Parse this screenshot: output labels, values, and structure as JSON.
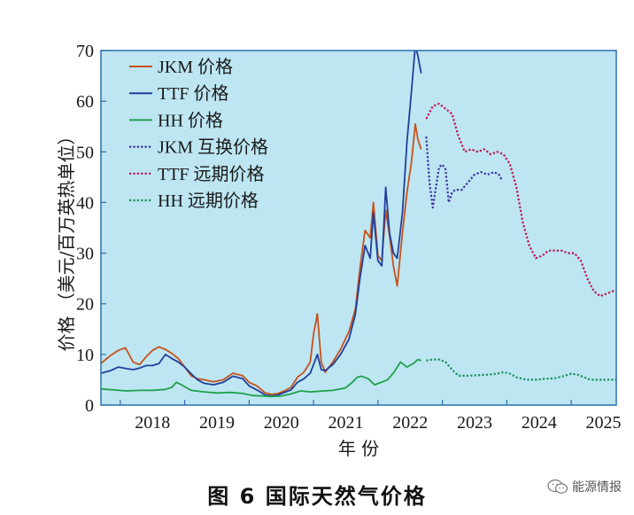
{
  "caption": "图 6    国际天然气价格",
  "watermark": {
    "text": "能源情报",
    "icon": "wechat-icon"
  },
  "chart_data": {
    "type": "line",
    "title": "",
    "xlabel": "年 份",
    "ylabel": "价格 （美元/百万英热单位）",
    "xlim": [
      2017.7,
      2025.7
    ],
    "ylim": [
      0,
      70
    ],
    "yticks": [
      0,
      10,
      20,
      30,
      40,
      50,
      60,
      70
    ],
    "xticks": [
      "2018",
      "2019",
      "2020",
      "2021",
      "2022",
      "2023",
      "2024",
      "2025"
    ],
    "background_color": "#bde6f2",
    "grid": false,
    "legend_position": "top-left",
    "series": [
      {
        "name": "JKM 价格",
        "color": "#c8511a",
        "style": "solid",
        "x": [
          2017.7,
          2017.85,
          2017.97,
          2018.08,
          2018.2,
          2018.3,
          2018.4,
          2018.5,
          2018.6,
          2018.7,
          2018.8,
          2018.9,
          2019.0,
          2019.1,
          2019.2,
          2019.3,
          2019.45,
          2019.6,
          2019.75,
          2019.9,
          2020.0,
          2020.12,
          2020.25,
          2020.35,
          2020.45,
          2020.55,
          2020.65,
          2020.75,
          2020.85,
          2020.95,
          2021.0,
          2021.06,
          2021.12,
          2021.18,
          2021.3,
          2021.42,
          2021.55,
          2021.65,
          2021.72,
          2021.8,
          2021.88,
          2021.93,
          2022.0,
          2022.06,
          2022.12,
          2022.18,
          2022.24,
          2022.3,
          2022.38,
          2022.45,
          2022.52,
          2022.58,
          2022.62,
          2022.67
        ],
        "y": [
          8.2,
          9.8,
          10.8,
          11.3,
          8.5,
          8.0,
          9.5,
          10.8,
          11.5,
          11.0,
          10.2,
          9.2,
          7.5,
          5.8,
          5.2,
          5.0,
          4.6,
          5.0,
          6.3,
          5.8,
          4.5,
          3.8,
          2.4,
          2.1,
          2.3,
          2.8,
          3.5,
          5.5,
          6.5,
          8.5,
          14.0,
          18.0,
          8.5,
          6.5,
          8.5,
          11.0,
          14.5,
          19.0,
          27.0,
          34.5,
          33.0,
          40.0,
          29.5,
          28.5,
          38.5,
          33.5,
          27.5,
          23.5,
          34.0,
          42.0,
          48.0,
          55.5,
          52.5,
          50.5
        ]
      },
      {
        "name": "TTF 价格",
        "color": "#1f3f9c",
        "style": "solid",
        "x": [
          2017.7,
          2017.85,
          2017.97,
          2018.1,
          2018.2,
          2018.3,
          2018.4,
          2018.5,
          2018.6,
          2018.7,
          2018.8,
          2018.9,
          2019.0,
          2019.1,
          2019.2,
          2019.3,
          2019.45,
          2019.6,
          2019.75,
          2019.9,
          2020.0,
          2020.12,
          2020.25,
          2020.35,
          2020.45,
          2020.55,
          2020.65,
          2020.75,
          2020.85,
          2020.95,
          2021.0,
          2021.06,
          2021.12,
          2021.18,
          2021.3,
          2021.42,
          2021.55,
          2021.65,
          2021.72,
          2021.8,
          2021.88,
          2021.93,
          2022.0,
          2022.06,
          2022.12,
          2022.18,
          2022.24,
          2022.3,
          2022.38,
          2022.45,
          2022.52,
          2022.58,
          2022.62,
          2022.67
        ],
        "y": [
          6.3,
          6.8,
          7.5,
          7.2,
          7.0,
          7.3,
          7.8,
          7.8,
          8.2,
          10.0,
          9.2,
          8.5,
          7.5,
          6.2,
          5.0,
          4.3,
          4.0,
          4.5,
          5.7,
          5.2,
          3.8,
          3.0,
          2.0,
          1.8,
          2.0,
          2.5,
          3.0,
          4.5,
          5.2,
          6.3,
          8.0,
          10.0,
          7.0,
          6.8,
          8.0,
          10.0,
          13.0,
          18.0,
          25.0,
          31.5,
          29.0,
          38.0,
          28.5,
          27.5,
          43.0,
          34.0,
          30.0,
          29.0,
          38.0,
          52.0,
          62.0,
          71.0,
          69.0,
          65.5
        ]
      },
      {
        "name": "HH 价格",
        "color": "#1fa04a",
        "style": "solid",
        "x": [
          2017.7,
          2017.9,
          2018.1,
          2018.3,
          2018.5,
          2018.7,
          2018.8,
          2018.87,
          2018.95,
          2019.1,
          2019.3,
          2019.5,
          2019.7,
          2019.9,
          2020.05,
          2020.2,
          2020.35,
          2020.5,
          2020.65,
          2020.8,
          2020.95,
          2021.05,
          2021.15,
          2021.3,
          2021.5,
          2021.6,
          2021.68,
          2021.75,
          2021.85,
          2021.95,
          2022.05,
          2022.15,
          2022.25,
          2022.35,
          2022.45,
          2022.55,
          2022.62,
          2022.67
        ],
        "y": [
          3.2,
          3.0,
          2.8,
          2.9,
          2.9,
          3.1,
          3.5,
          4.5,
          4.0,
          2.9,
          2.6,
          2.4,
          2.5,
          2.3,
          1.9,
          1.8,
          1.7,
          1.8,
          2.2,
          2.8,
          2.6,
          2.7,
          2.8,
          2.9,
          3.4,
          4.5,
          5.5,
          5.7,
          5.2,
          4.0,
          4.5,
          5.0,
          6.5,
          8.5,
          7.5,
          8.2,
          9.0,
          8.8
        ]
      },
      {
        "name": "JKM 互换价格",
        "color": "#3a2fa0",
        "style": "dotted",
        "x": [
          2022.75,
          2022.8,
          2022.85,
          2022.9,
          2022.95,
          2023.0,
          2023.05,
          2023.1,
          2023.15,
          2023.2,
          2023.3,
          2023.4,
          2023.5,
          2023.6,
          2023.7,
          2023.8,
          2023.88,
          2023.92
        ],
        "y": [
          53.0,
          44.0,
          39.0,
          43.0,
          47.0,
          47.5,
          46.5,
          40.0,
          42.0,
          42.5,
          42.5,
          44.0,
          45.5,
          46.0,
          45.5,
          46.0,
          45.5,
          44.5
        ]
      },
      {
        "name": "TTF 远期价格",
        "color": "#c01050",
        "style": "dotted",
        "x": [
          2022.75,
          2022.85,
          2022.95,
          2023.05,
          2023.15,
          2023.25,
          2023.35,
          2023.45,
          2023.55,
          2023.65,
          2023.75,
          2023.85,
          2023.95,
          2024.05,
          2024.15,
          2024.25,
          2024.35,
          2024.45,
          2024.55,
          2024.65,
          2024.75,
          2024.85,
          2024.95,
          2025.05,
          2025.15,
          2025.25,
          2025.35,
          2025.45,
          2025.55,
          2025.65,
          2025.7
        ],
        "y": [
          56.5,
          59.0,
          59.5,
          58.5,
          57.5,
          53.0,
          50.0,
          50.5,
          50.0,
          50.5,
          49.5,
          50.0,
          49.5,
          47.5,
          43.0,
          36.0,
          31.5,
          29.0,
          29.5,
          30.5,
          30.5,
          30.5,
          30.0,
          30.0,
          28.5,
          25.0,
          22.5,
          21.5,
          22.0,
          22.5,
          22.5
        ]
      },
      {
        "name": "HH 远期价格",
        "color": "#1a8f5a",
        "style": "dotted",
        "x": [
          2022.75,
          2022.85,
          2022.95,
          2023.05,
          2023.15,
          2023.25,
          2023.4,
          2023.55,
          2023.7,
          2023.85,
          2023.95,
          2024.05,
          2024.15,
          2024.3,
          2024.45,
          2024.6,
          2024.75,
          2024.9,
          2025.0,
          2025.1,
          2025.2,
          2025.3,
          2025.45,
          2025.6,
          2025.7
        ],
        "y": [
          8.8,
          9.0,
          9.0,
          8.5,
          7.0,
          5.8,
          5.8,
          5.9,
          6.0,
          6.2,
          6.5,
          6.2,
          5.5,
          5.0,
          5.0,
          5.2,
          5.3,
          5.8,
          6.2,
          6.0,
          5.5,
          5.0,
          5.0,
          5.0,
          5.0
        ]
      }
    ]
  }
}
